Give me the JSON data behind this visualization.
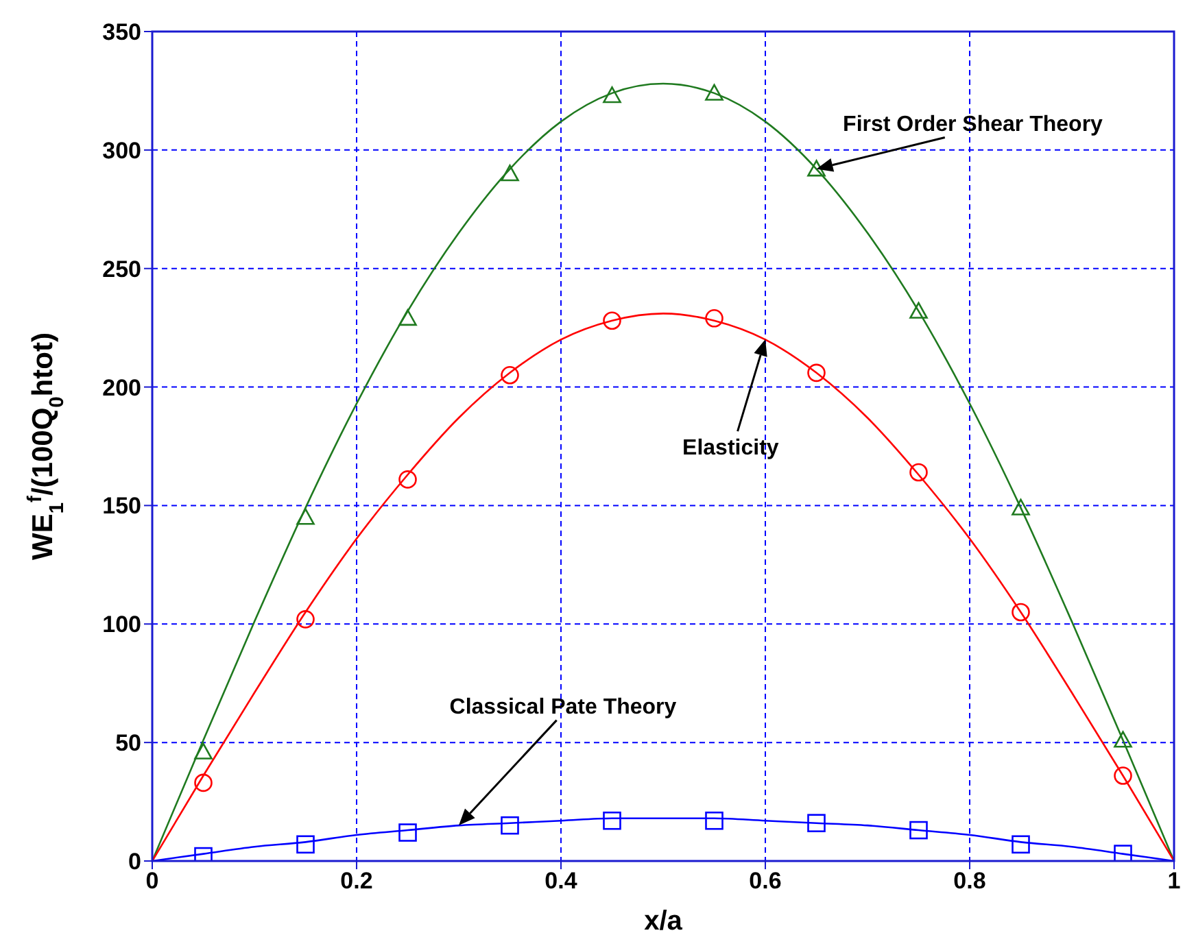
{
  "chart_data": {
    "type": "line",
    "xlabel": "x/a",
    "ylabel": "WE$_{1}$$^{f}$/(100Q$_{0}$htot)",
    "xlim": [
      0,
      1
    ],
    "xticks": [
      0,
      0.2,
      0.4,
      0.6,
      0.8,
      1
    ],
    "ylim": [
      0,
      350
    ],
    "yticks": [
      0,
      50,
      100,
      150,
      200,
      250,
      300,
      350
    ],
    "grid": true,
    "series": [
      {
        "type": "line",
        "marker": "none",
        "color": "#1f7a1f",
        "x": [
          0,
          0.05,
          0.1,
          0.15,
          0.2,
          0.25,
          0.3,
          0.35,
          0.4,
          0.45,
          0.5,
          0.55,
          0.6,
          0.65,
          0.7,
          0.75,
          0.8,
          0.85,
          0.9,
          0.95,
          1
        ],
        "values": [
          0,
          51,
          101,
          149,
          193,
          232,
          265,
          292,
          312,
          324,
          328,
          324,
          312,
          292,
          265,
          232,
          193,
          149,
          101,
          51,
          0
        ]
      },
      {
        "type": "scatter",
        "marker": "triangle",
        "color": "#1f7a1f",
        "x": [
          0.05,
          0.15,
          0.25,
          0.35,
          0.45,
          0.55,
          0.65,
          0.75,
          0.85,
          0.95
        ],
        "values": [
          46,
          145,
          229,
          290,
          323,
          324,
          292,
          232,
          149,
          51
        ]
      },
      {
        "type": "line",
        "marker": "none",
        "color": "#ff0000",
        "x": [
          0,
          0.05,
          0.1,
          0.15,
          0.2,
          0.25,
          0.3,
          0.35,
          0.4,
          0.45,
          0.5,
          0.55,
          0.6,
          0.65,
          0.7,
          0.75,
          0.8,
          0.85,
          0.9,
          0.95,
          1
        ],
        "values": [
          0,
          36,
          71,
          105,
          136,
          163,
          187,
          206,
          220,
          228,
          231,
          228,
          220,
          206,
          187,
          163,
          136,
          105,
          71,
          36,
          0
        ]
      },
      {
        "type": "scatter",
        "marker": "circle",
        "color": "#ff0000",
        "x": [
          0.05,
          0.15,
          0.25,
          0.35,
          0.45,
          0.55,
          0.65,
          0.75,
          0.85,
          0.95
        ],
        "values": [
          33,
          102,
          161,
          205,
          228,
          229,
          206,
          164,
          105,
          36
        ]
      },
      {
        "type": "line",
        "marker": "none",
        "color": "#0000ff",
        "x": [
          0,
          0.05,
          0.1,
          0.15,
          0.2,
          0.25,
          0.3,
          0.35,
          0.4,
          0.45,
          0.5,
          0.55,
          0.6,
          0.65,
          0.7,
          0.75,
          0.8,
          0.85,
          0.9,
          0.95,
          1
        ],
        "values": [
          0,
          3,
          6,
          8,
          11,
          13,
          15,
          16,
          17,
          18,
          18,
          18,
          17,
          16,
          15,
          13,
          11,
          8,
          6,
          3,
          0
        ]
      },
      {
        "type": "scatter",
        "marker": "square",
        "color": "#0000ff",
        "x": [
          0.05,
          0.15,
          0.25,
          0.35,
          0.45,
          0.55,
          0.65,
          0.75,
          0.85,
          0.95
        ],
        "values": [
          2,
          7,
          12,
          15,
          17,
          17,
          16,
          13,
          7,
          3
        ]
      }
    ],
    "annotations": [
      {
        "text": "First Order Shear Theory",
        "x": 0.65,
        "y": 292
      },
      "Elasticity",
      "Classical Pate Theory"
    ]
  }
}
